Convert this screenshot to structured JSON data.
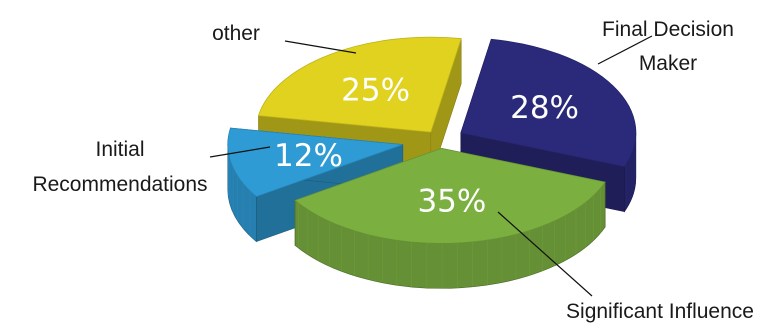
{
  "chart_data": {
    "type": "pie",
    "style": "3d-exploded",
    "slices": [
      {
        "label": "Final Decision Maker",
        "label_lines": [
          "Final Decision",
          "Maker"
        ],
        "value": 28,
        "display": "28%",
        "color": "#2b2a7a"
      },
      {
        "label": "Significant Influence",
        "label_lines": [
          "Significant Influence"
        ],
        "value": 35,
        "display": "35%",
        "color": "#7bb041"
      },
      {
        "label": "Initial Recommendations",
        "label_lines": [
          "Initial",
          "Recommendations"
        ],
        "value": 12,
        "display": "12%",
        "color": "#2e9bd4"
      },
      {
        "label": "other",
        "label_lines": [
          "other"
        ],
        "value": 25,
        "display": "25%",
        "color": "#e0d21e"
      }
    ]
  }
}
